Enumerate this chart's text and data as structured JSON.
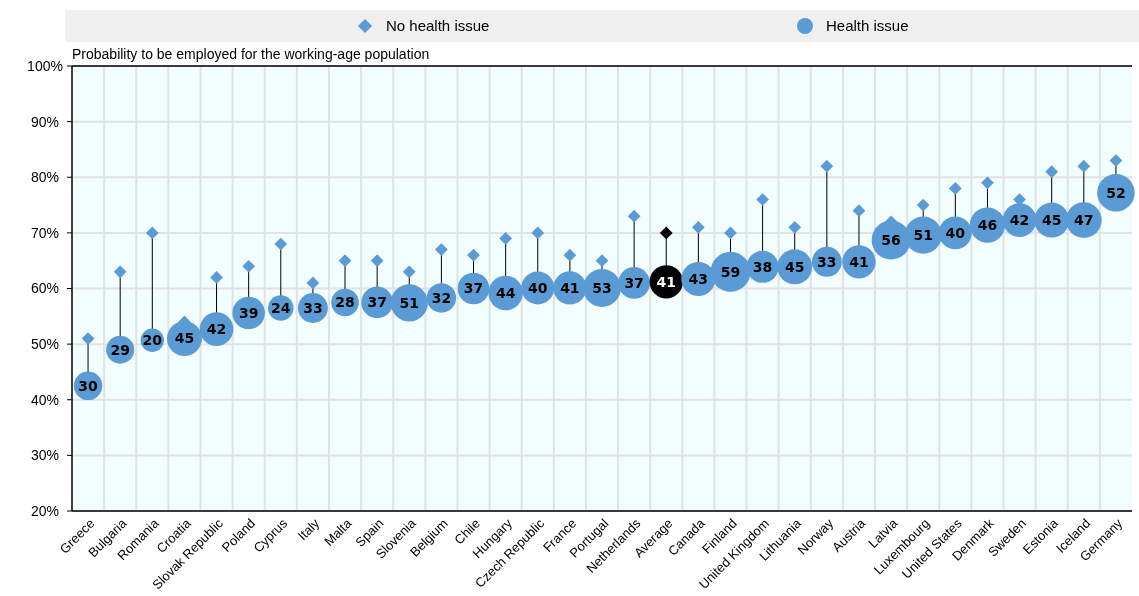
{
  "chart_data": {
    "type": "bubble",
    "ylabel": "Probability to be employed for the working-age population",
    "categories": [
      "Greece",
      "Bulgaria",
      "Romania",
      "Croatia",
      "Slovak Republic",
      "Poland",
      "Cyprus",
      "Italy",
      "Malta",
      "Spain",
      "Slovenia",
      "Belgium",
      "Chile",
      "Hungary",
      "Czech Republic",
      "France",
      "Portugal",
      "Netherlands",
      "Average",
      "Canada",
      "Finland",
      "United Kingdom",
      "Lithuania",
      "Norway",
      "Austria",
      "Latvia",
      "Luxembourg",
      "United States",
      "Denmark",
      "Sweden",
      "Estonia",
      "Iceland",
      "Germany"
    ],
    "series": [
      {
        "name": "No health issue",
        "type": "scatter",
        "marker": "diamond",
        "color": "#5b9bd5",
        "colors": [
          "#5b9bd5",
          "#5b9bd5",
          "#5b9bd5",
          "#5b9bd5",
          "#5b9bd5",
          "#5b9bd5",
          "#5b9bd5",
          "#5b9bd5",
          "#5b9bd5",
          "#5b9bd5",
          "#5b9bd5",
          "#5b9bd5",
          "#5b9bd5",
          "#5b9bd5",
          "#5b9bd5",
          "#5b9bd5",
          "#5b9bd5",
          "#5b9bd5",
          "#000000",
          "#5b9bd5",
          "#5b9bd5",
          "#5b9bd5",
          "#5b9bd5",
          "#5b9bd5",
          "#5b9bd5",
          "#5b9bd5",
          "#5b9bd5",
          "#5b9bd5",
          "#5b9bd5",
          "#5b9bd5",
          "#5b9bd5",
          "#5b9bd5",
          "#5b9bd5"
        ],
        "values": [
          51,
          63,
          70,
          54,
          62,
          64,
          68,
          61,
          65,
          65,
          63,
          67,
          66,
          69,
          70,
          66,
          65,
          73,
          70,
          71,
          70,
          76,
          71,
          82,
          74,
          72,
          75,
          78,
          79,
          76,
          81,
          82,
          83
        ]
      },
      {
        "name": "Health issue",
        "marker": "circle",
        "color": "#5b9bd5",
        "colors": [
          "#5b9bd5",
          "#5b9bd5",
          "#5b9bd5",
          "#5b9bd5",
          "#5b9bd5",
          "#5b9bd5",
          "#5b9bd5",
          "#5b9bd5",
          "#5b9bd5",
          "#5b9bd5",
          "#5b9bd5",
          "#5b9bd5",
          "#5b9bd5",
          "#5b9bd5",
          "#5b9bd5",
          "#5b9bd5",
          "#5b9bd5",
          "#5b9bd5",
          "#000000",
          "#5b9bd5",
          "#5b9bd5",
          "#5b9bd5",
          "#5b9bd5",
          "#5b9bd5",
          "#5b9bd5",
          "#5b9bd5",
          "#5b9bd5",
          "#5b9bd5",
          "#5b9bd5",
          "#5b9bd5",
          "#5b9bd5",
          "#5b9bd5",
          "#5b9bd5"
        ],
        "values": [
          42.5,
          49,
          50.7,
          51,
          52.7,
          55.6,
          56.5,
          56.5,
          57.5,
          57.5,
          57.4,
          58.3,
          60,
          59.2,
          60.1,
          60.1,
          60.1,
          61,
          61.2,
          61.7,
          63,
          63.9,
          63.9,
          64.8,
          64.8,
          68.7,
          69.6,
          70,
          71.4,
          72.3,
          72.3,
          72.3,
          77.2
        ],
        "sizes": [
          30,
          29,
          20,
          45,
          42,
          39,
          24,
          33,
          28,
          37,
          51,
          32,
          37,
          44,
          40,
          41,
          53,
          37,
          41,
          43,
          59,
          38,
          45,
          33,
          41,
          56,
          51,
          40,
          46,
          42,
          45,
          47,
          52
        ],
        "value_labels": [
          "30",
          "29",
          "20",
          "45",
          "42",
          "39",
          "24",
          "33",
          "28",
          "37",
          "51",
          "32",
          "37",
          "44",
          "40",
          "41",
          "53",
          "37",
          "41",
          "43",
          "59",
          "38",
          "45",
          "33",
          "41",
          "56",
          "51",
          "40",
          "46",
          "42",
          "45",
          "47",
          "52"
        ]
      }
    ],
    "ylim": [
      20,
      100
    ],
    "yticks": [
      {
        "value": 20,
        "label": "20%"
      },
      {
        "value": 30,
        "label": "30%"
      },
      {
        "value": 40,
        "label": "40%"
      },
      {
        "value": 50,
        "label": "50%"
      },
      {
        "value": 60,
        "label": "60%"
      },
      {
        "value": 70,
        "label": "70%"
      },
      {
        "value": 80,
        "label": "80%"
      },
      {
        "value": 90,
        "label": "90%"
      },
      {
        "value": 100,
        "label": "100%"
      }
    ],
    "grid": true,
    "legend": "top"
  }
}
